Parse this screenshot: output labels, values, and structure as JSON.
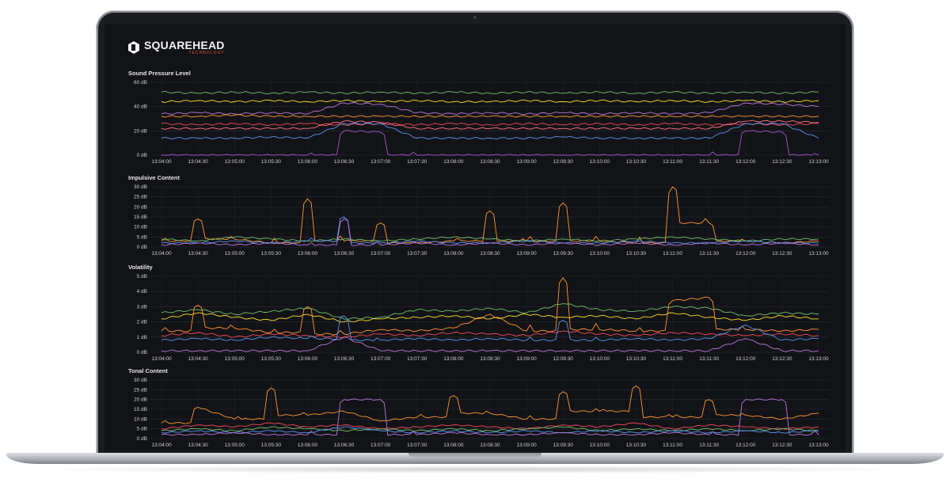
{
  "header": {
    "brand": "SQUAREHEAD",
    "sub": "TECHNOLOGY"
  },
  "chart_data": [
    {
      "type": "line",
      "title": "Sound Pressure Level",
      "yticks": [
        "0 dB",
        "20 dB",
        "40 dB",
        "60 dB"
      ],
      "ylim": [
        0,
        60
      ],
      "x": [
        "13:04:00",
        "13:04:30",
        "13:05:00",
        "13:05:30",
        "13:06:00",
        "13:06:30",
        "13:07:00",
        "13:07:30",
        "13:08:00",
        "13:08:30",
        "13:09:00",
        "13:09:30",
        "13:10:00",
        "13:10:30",
        "13:11:00",
        "13:11:30",
        "13:12:00",
        "13:12:30",
        "13:13:00"
      ],
      "grid": true,
      "series": [
        {
          "color": "#73bf69",
          "values": [
            52,
            51,
            52,
            51,
            52,
            51,
            52,
            51,
            52,
            51,
            52,
            51,
            52,
            51,
            52,
            51,
            52,
            51,
            52
          ]
        },
        {
          "color": "#fade2a",
          "values": [
            44,
            45,
            44,
            45,
            44,
            45,
            44,
            45,
            44,
            44,
            45,
            44,
            45,
            44,
            45,
            44,
            45,
            44,
            45
          ]
        },
        {
          "color": "#b877d9",
          "values": [
            34,
            35,
            34,
            35,
            34,
            43,
            42,
            35,
            34,
            35,
            34,
            35,
            34,
            35,
            34,
            35,
            43,
            42,
            40
          ]
        },
        {
          "color": "#ff9830",
          "values": [
            32,
            32,
            33,
            32,
            32,
            32,
            32,
            32,
            32,
            32,
            32,
            32,
            32,
            32,
            32,
            32,
            32,
            32,
            32
          ]
        },
        {
          "color": "#f2495c",
          "values": [
            26,
            25,
            26,
            25,
            26,
            25,
            26,
            25,
            26,
            25,
            26,
            25,
            26,
            25,
            26,
            25,
            26,
            25,
            26
          ]
        },
        {
          "color": "#ff7383",
          "values": [
            22,
            22,
            22,
            22,
            22,
            28,
            27,
            22,
            22,
            22,
            22,
            22,
            22,
            22,
            22,
            22,
            28,
            28,
            27
          ]
        },
        {
          "color": "#5794f2",
          "values": [
            14,
            14,
            14,
            15,
            14,
            26,
            26,
            14,
            14,
            14,
            14,
            15,
            14,
            14,
            14,
            14,
            26,
            26,
            14
          ]
        },
        {
          "color": "#a352cc",
          "values": [
            0,
            0,
            0,
            0,
            0,
            20,
            19,
            0,
            0,
            0,
            0,
            0,
            0,
            0,
            0,
            0,
            20,
            19,
            0
          ]
        }
      ]
    },
    {
      "type": "line",
      "title": "Impulsive Content",
      "yticks": [
        "0 dB",
        "5 dB",
        "10 dB",
        "15 dB",
        "20 dB",
        "25 dB",
        "30 dB"
      ],
      "ylim": [
        0,
        30
      ],
      "x": [
        "13:04:00",
        "13:04:30",
        "13:05:00",
        "13:05:30",
        "13:06:00",
        "13:06:30",
        "13:07:00",
        "13:07:30",
        "13:08:00",
        "13:08:30",
        "13:09:00",
        "13:09:30",
        "13:10:00",
        "13:10:30",
        "13:11:00",
        "13:11:30",
        "13:12:00",
        "13:12:30",
        "13:13:00"
      ],
      "grid": true,
      "series": [
        {
          "color": "#ff9830",
          "values": [
            3,
            14,
            4,
            2,
            24,
            3,
            12,
            2,
            3,
            18,
            3,
            22,
            3,
            2,
            30,
            12,
            3,
            2,
            3
          ]
        },
        {
          "color": "#73bf69",
          "values": [
            4,
            3,
            5,
            4,
            3,
            4,
            3,
            4,
            5,
            4,
            3,
            4,
            3,
            4,
            5,
            4,
            3,
            4,
            4
          ]
        },
        {
          "color": "#5794f2",
          "values": [
            2,
            2,
            3,
            2,
            3,
            15,
            2,
            3,
            2,
            2,
            3,
            2,
            2,
            3,
            2,
            2,
            3,
            2,
            2
          ]
        },
        {
          "color": "#b877d9",
          "values": [
            1,
            2,
            1,
            2,
            1,
            14,
            1,
            2,
            1,
            2,
            1,
            2,
            1,
            2,
            1,
            2,
            1,
            2,
            1
          ]
        }
      ]
    },
    {
      "type": "line",
      "title": "Volatility",
      "yticks": [
        "0 dB",
        "1 dB",
        "2 dB",
        "3 dB",
        "4 dB",
        "5 dB"
      ],
      "ylim": [
        0,
        5
      ],
      "x": [
        "13:04:00",
        "13:04:30",
        "13:05:00",
        "13:05:30",
        "13:06:00",
        "13:06:30",
        "13:07:00",
        "13:07:30",
        "13:08:00",
        "13:08:30",
        "13:09:00",
        "13:09:30",
        "13:10:00",
        "13:10:30",
        "13:11:00",
        "13:11:30",
        "13:12:00",
        "13:12:30",
        "13:13:00"
      ],
      "grid": true,
      "series": [
        {
          "color": "#73bf69",
          "values": [
            2.6,
            2.8,
            2.5,
            2.7,
            2.9,
            2.2,
            2.3,
            2.8,
            2.7,
            2.9,
            2.6,
            3.2,
            2.8,
            2.7,
            3.0,
            2.9,
            2.4,
            2.6,
            2.5
          ]
        },
        {
          "color": "#fade2a",
          "values": [
            2.2,
            2.6,
            2.3,
            2.1,
            2.5,
            2.0,
            2.2,
            2.3,
            2.4,
            2.2,
            2.5,
            2.3,
            2.4,
            2.2,
            2.6,
            2.3,
            2.1,
            2.4,
            2.2
          ]
        },
        {
          "color": "#ff9830",
          "values": [
            1.4,
            3.1,
            1.6,
            1.3,
            3.0,
            1.2,
            1.5,
            1.4,
            1.6,
            2.5,
            1.4,
            4.9,
            1.5,
            1.4,
            3.4,
            3.6,
            1.5,
            1.4,
            1.5
          ]
        },
        {
          "color": "#f2495c",
          "values": [
            1.1,
            1.3,
            1.0,
            1.2,
            1.1,
            1.0,
            1.2,
            1.1,
            1.3,
            1.2,
            1.1,
            1.4,
            1.2,
            1.1,
            1.3,
            1.2,
            1.1,
            1.2,
            1.1
          ]
        },
        {
          "color": "#5794f2",
          "values": [
            0.8,
            0.9,
            0.8,
            1.0,
            0.9,
            2.4,
            0.8,
            0.9,
            0.8,
            0.9,
            0.8,
            2.1,
            0.8,
            0.9,
            0.8,
            0.9,
            1.8,
            0.8,
            0.9
          ]
        },
        {
          "color": "#b877d9",
          "values": [
            0.1,
            0.1,
            0.1,
            0.1,
            0.1,
            1.0,
            0.1,
            0.1,
            0.1,
            0.1,
            0.1,
            0.1,
            0.1,
            0.1,
            0.1,
            0.1,
            0.9,
            0.1,
            0.1
          ]
        }
      ]
    },
    {
      "type": "line",
      "title": "Tonal Content",
      "yticks": [
        "0 dB",
        "5 dB",
        "10 dB",
        "15 dB",
        "20 dB",
        "25 dB",
        "30 dB"
      ],
      "ylim": [
        0,
        30
      ],
      "x": [
        "13:04:00",
        "13:04:30",
        "13:05:00",
        "13:05:30",
        "13:06:00",
        "13:06:30",
        "13:07:00",
        "13:07:30",
        "13:08:00",
        "13:08:30",
        "13:09:00",
        "13:09:30",
        "13:10:00",
        "13:10:30",
        "13:11:00",
        "13:11:30",
        "13:12:00",
        "13:12:30",
        "13:13:00"
      ],
      "grid": true,
      "series": [
        {
          "color": "#ff9830",
          "values": [
            8,
            16,
            10,
            26,
            12,
            14,
            9,
            11,
            22,
            13,
            10,
            24,
            14,
            27,
            11,
            20,
            12,
            10,
            13
          ]
        },
        {
          "color": "#f2495c",
          "values": [
            5,
            7,
            6,
            8,
            6,
            7,
            5,
            6,
            7,
            6,
            5,
            7,
            6,
            8,
            5,
            7,
            6,
            5,
            6
          ]
        },
        {
          "color": "#73bf69",
          "values": [
            4,
            5,
            4,
            6,
            5,
            4,
            5,
            4,
            5,
            4,
            5,
            6,
            4,
            5,
            4,
            5,
            4,
            5,
            4
          ]
        },
        {
          "color": "#5794f2",
          "values": [
            3,
            4,
            3,
            4,
            3,
            6,
            4,
            3,
            4,
            3,
            4,
            3,
            4,
            3,
            4,
            3,
            4,
            3,
            4
          ]
        },
        {
          "color": "#b877d9",
          "values": [
            2,
            2,
            3,
            2,
            2,
            20,
            20,
            2,
            3,
            2,
            2,
            3,
            2,
            2,
            3,
            2,
            20,
            20,
            2
          ]
        }
      ]
    }
  ]
}
